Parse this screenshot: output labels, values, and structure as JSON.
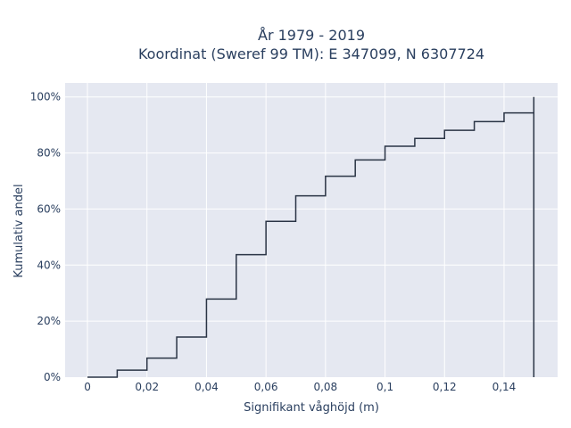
{
  "chart_data": {
    "type": "line",
    "step": true,
    "title_lines": [
      "År 1979 - 2019",
      "Koordinat (Sweref 99 TM): E 347099, N 6307724"
    ],
    "xlabel": "Signifikant våghöjd (m)",
    "ylabel": "Kumulativ andel",
    "xlim": [
      -0.0075,
      0.158
    ],
    "ylim": [
      0,
      1.05
    ],
    "x_ticks": [
      0,
      0.02,
      0.04,
      0.06,
      0.08,
      0.1,
      0.12,
      0.14
    ],
    "x_tick_labels": [
      "0",
      "0,02",
      "0,04",
      "0,06",
      "0,08",
      "0,1",
      "0,12",
      "0,14"
    ],
    "y_ticks": [
      0,
      0.2,
      0.4,
      0.6,
      0.8,
      1.0
    ],
    "y_tick_labels": [
      "0%",
      "20%",
      "40%",
      "60%",
      "80%",
      "100%"
    ],
    "grid": true,
    "line_color": "#2a3445",
    "background": "#e5e8f1",
    "x": [
      0,
      0.01,
      0.02,
      0.03,
      0.04,
      0.05,
      0.06,
      0.07,
      0.08,
      0.09,
      0.1,
      0.11,
      0.12,
      0.13,
      0.14,
      0.15
    ],
    "y": [
      0.0,
      0.025,
      0.068,
      0.143,
      0.279,
      0.437,
      0.556,
      0.647,
      0.717,
      0.775,
      0.824,
      0.852,
      0.881,
      0.912,
      0.943,
      1.0
    ]
  }
}
